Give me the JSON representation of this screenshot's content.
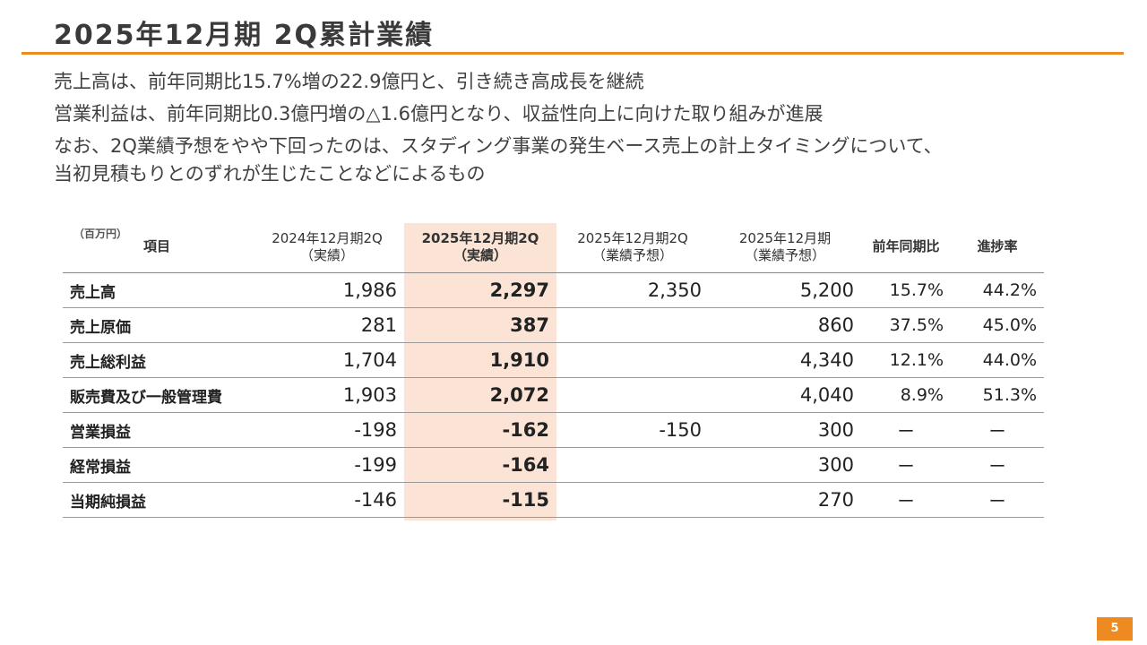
{
  "title": "2025年12月期 2Q累計業績",
  "summary": [
    "売上高は、前年同期比15.7%増の22.9億円と、引き続き高成長を継続",
    "営業利益は、前年同期比0.3億円増の△1.6億円となり、収益性向上に向けた取り組みが進展",
    "なお、2Q業績予想をやや下回ったのは、スタディング事業の発生ベース売上の計上タイミングについて、",
    "当初見積もりとのずれが生じたことなどによるもの"
  ],
  "table": {
    "unit": "（百万円）",
    "headers": {
      "item": "項目",
      "c1": [
        "2024年12月期2Q",
        "（実績）"
      ],
      "c2": [
        "2025年12月期2Q",
        "（実績）"
      ],
      "c3": [
        "2025年12月期2Q",
        "（業績予想）"
      ],
      "c4": [
        "2025年12月期",
        "（業績予想）"
      ],
      "c5": "前年同期比",
      "c6": "進捗率"
    },
    "rows": [
      {
        "item": "売上高",
        "c1": "1,986",
        "c2": "2,297",
        "c3": "2,350",
        "c4": "5,200",
        "c5": "15.7%",
        "c6": "44.2%"
      },
      {
        "item": "売上原価",
        "c1": "281",
        "c2": "387",
        "c3": "",
        "c4": "860",
        "c5": "37.5%",
        "c6": "45.0%"
      },
      {
        "item": "売上総利益",
        "c1": "1,704",
        "c2": "1,910",
        "c3": "",
        "c4": "4,340",
        "c5": "12.1%",
        "c6": "44.0%"
      },
      {
        "item": "販売費及び一般管理費",
        "c1": "1,903",
        "c2": "2,072",
        "c3": "",
        "c4": "4,040",
        "c5": "8.9%",
        "c6": "51.3%"
      },
      {
        "item": "営業損益",
        "c1": "-198",
        "c2": "-162",
        "c3": "-150",
        "c4": "300",
        "c5": "ー",
        "c6": "ー"
      },
      {
        "item": "経常損益",
        "c1": "-199",
        "c2": "-164",
        "c3": "",
        "c4": "300",
        "c5": "ー",
        "c6": "ー"
      },
      {
        "item": "当期純損益",
        "c1": "-146",
        "c2": "-115",
        "c3": "",
        "c4": "270",
        "c5": "ー",
        "c6": "ー"
      }
    ]
  },
  "page_number": "5",
  "colors": {
    "accent": "#ee8a22",
    "highlight_column": "#fbe3d5"
  }
}
